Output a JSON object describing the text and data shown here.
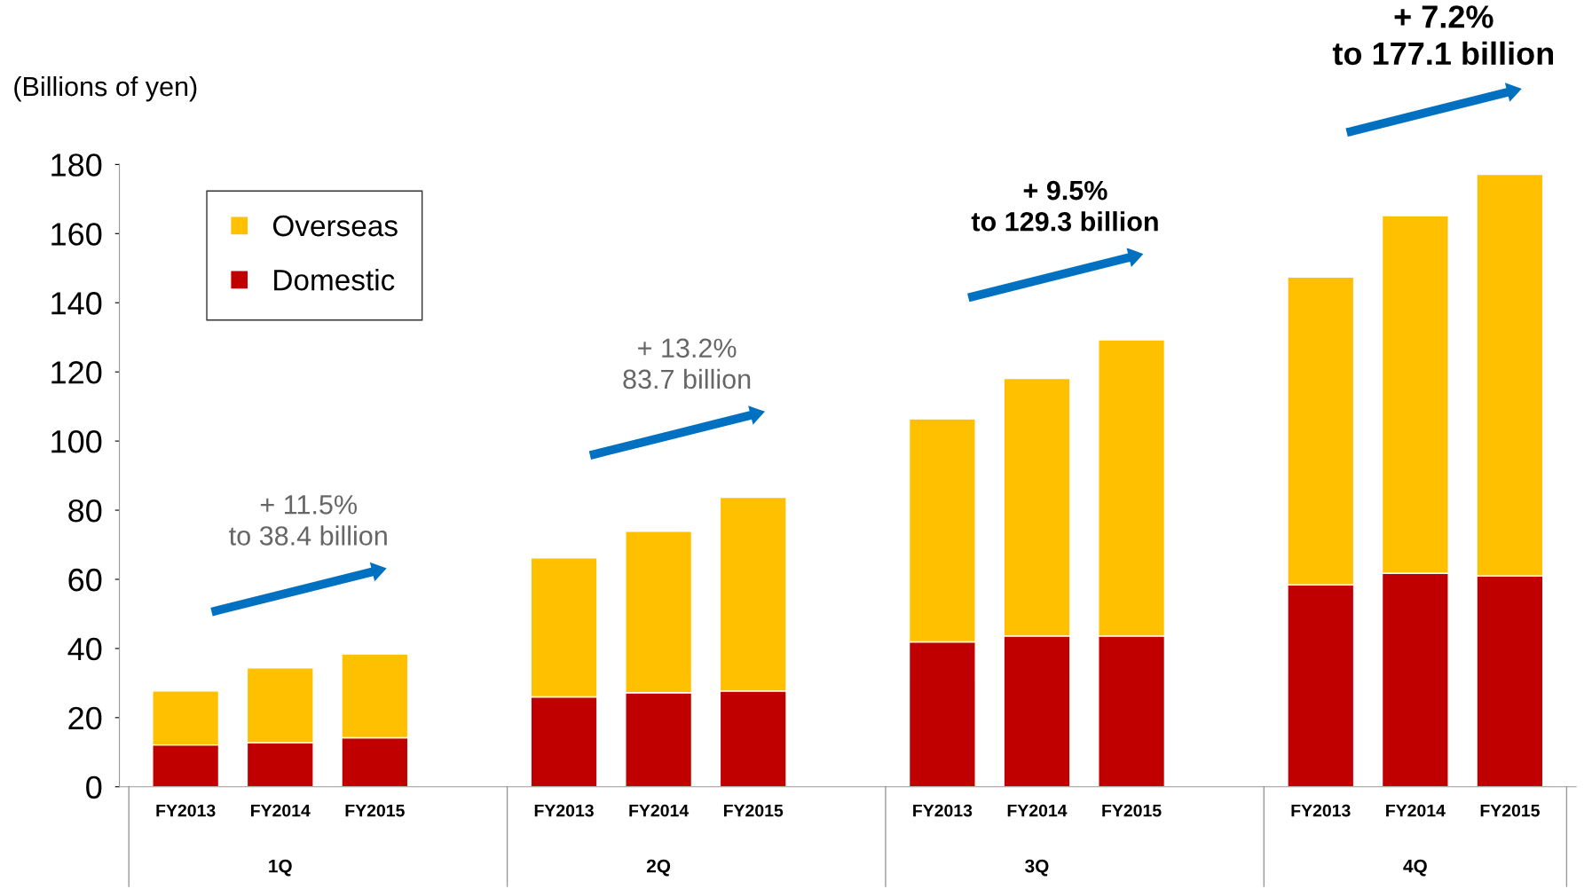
{
  "chart_data": {
    "type": "bar",
    "stacked": true,
    "ylabel": "(Billions of yen)",
    "categories": [
      "FY2013",
      "FY2014",
      "FY2015",
      "FY2013",
      "FY2014",
      "FY2015",
      "FY2013",
      "FY2014",
      "FY2015",
      "FY2013",
      "FY2014",
      "FY2015"
    ],
    "series": [
      {
        "name": "Domestic",
        "color": "#c00000",
        "values": [
          12.1,
          12.7,
          14.2,
          26.0,
          27.2,
          27.7,
          41.9,
          43.6,
          43.6,
          58.4,
          61.8,
          61.0
        ]
      },
      {
        "name": "Overseas",
        "color": "#ffc000",
        "values": [
          15.6,
          21.7,
          24.2,
          40.2,
          46.7,
          56.0,
          64.5,
          74.5,
          85.7,
          89.0,
          103.4,
          116.1
        ]
      }
    ],
    "ylim": [
      0,
      180
    ],
    "yticks": [
      0,
      20,
      40,
      60,
      80,
      100,
      120,
      140,
      160,
      180
    ],
    "grid": false,
    "legend": "top left",
    "annotations": [
      "+ 11.5%\nto 38.4 billion",
      "+ 13.2%\n83.7 billion",
      "+ 9.5%\nto 129.3 billion",
      "+ 7.2%\nto 177.1 billion",
      "1Q",
      "2Q",
      "3Q",
      "4Q"
    ]
  }
}
